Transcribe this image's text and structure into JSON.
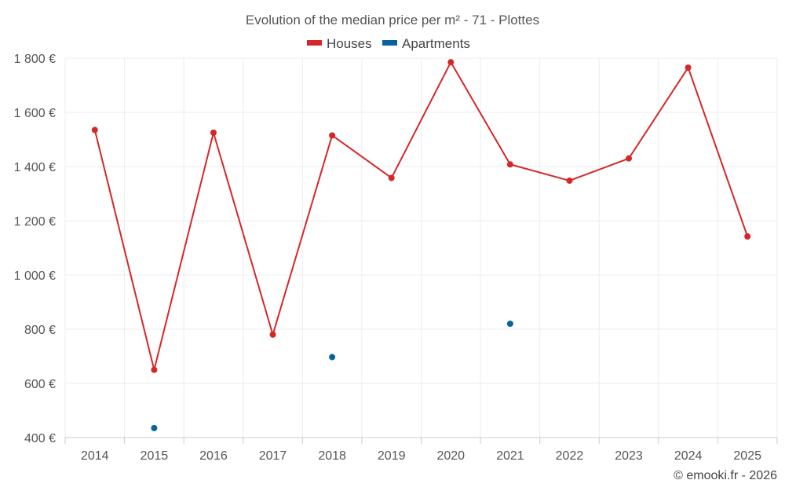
{
  "chart_data": {
    "type": "line",
    "title": "Evolution of the median price per m² - 71 - Plottes",
    "categories": [
      "2014",
      "2015",
      "2016",
      "2017",
      "2018",
      "2019",
      "2020",
      "2021",
      "2022",
      "2023",
      "2024",
      "2025"
    ],
    "series": [
      {
        "name": "Houses",
        "color": "#d62728",
        "line": true,
        "values": [
          1535,
          650,
          1525,
          780,
          1515,
          1358,
          1785,
          1408,
          1348,
          1430,
          1765,
          1142
        ]
      },
      {
        "name": "Apartments",
        "color": "#08639c",
        "line": false,
        "values": [
          null,
          435,
          null,
          null,
          697,
          null,
          null,
          820,
          null,
          null,
          null,
          null
        ]
      }
    ],
    "ylim": [
      400,
      1800
    ],
    "yticks": [
      400,
      600,
      800,
      1000,
      1200,
      1400,
      1600,
      1800
    ],
    "ytick_labels": [
      "400 €",
      "600 €",
      "800 €",
      "1 000 €",
      "1 200 €",
      "1 400 €",
      "1 600 €",
      "1 800 €"
    ],
    "xlabel": "",
    "ylabel": "",
    "grid": true,
    "legend_position": "top-center"
  },
  "credit": "© emooki.fr - 2026"
}
